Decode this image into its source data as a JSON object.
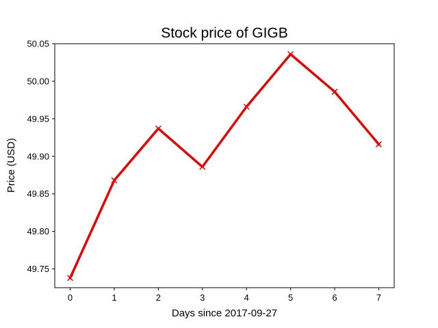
{
  "chart_data": {
    "type": "line",
    "title": "Stock price of GIGB",
    "xlabel": "Days since 2017-09-27",
    "ylabel": "Price (USD)",
    "x": [
      0,
      1,
      2,
      3,
      4,
      5,
      6,
      7
    ],
    "xlim": [
      -0.35,
      7.35
    ],
    "ylim": [
      49.725,
      50.05
    ],
    "x_ticks": [
      "0",
      "1",
      "2",
      "3",
      "4",
      "5",
      "6",
      "7"
    ],
    "y_ticks": [
      "49.75",
      "49.80",
      "49.85",
      "49.90",
      "49.95",
      "50.00",
      "50.05"
    ],
    "series": [
      {
        "values": [
          49.738,
          49.868,
          49.937,
          49.886,
          49.966,
          50.036,
          49.986,
          49.916
        ],
        "color": "#e60000",
        "marker": "x"
      }
    ],
    "grid": false,
    "legend": "none"
  }
}
